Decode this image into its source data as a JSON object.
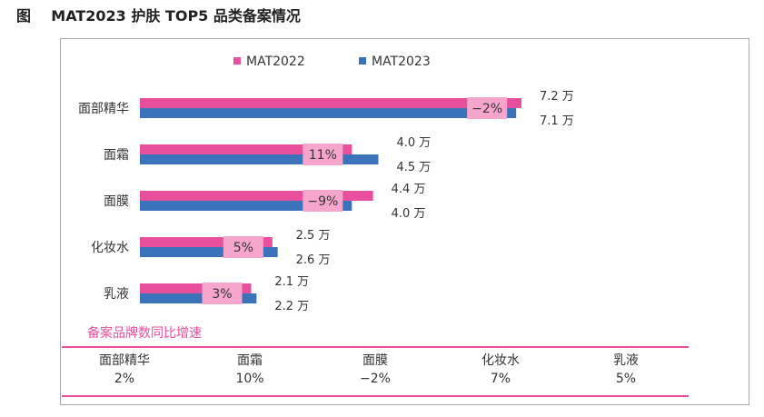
{
  "figure_title": "图    MAT2023 护肤 TOP5 品类备案情况",
  "chart_data": {
    "type": "bar",
    "orientation": "horizontal",
    "categories": [
      "面部精华",
      "面霜",
      "面膜",
      "化妆水",
      "乳液"
    ],
    "series": [
      {
        "name": "MAT2022",
        "values": [
          7.2,
          4.0,
          4.4,
          2.5,
          2.1
        ],
        "labels": [
          "7.2 万",
          "4.0 万",
          "4.4 万",
          "2.5 万",
          "2.1 万"
        ]
      },
      {
        "name": "MAT2023",
        "values": [
          7.1,
          4.5,
          4.0,
          2.6,
          2.2
        ],
        "labels": [
          "7.1 万",
          "4.5 万",
          "4.0 万",
          "2.6 万",
          "2.2 万"
        ]
      }
    ],
    "change_labels": [
      "−2%",
      "11%",
      "−9%",
      "5%",
      "3%"
    ],
    "xlim": [
      0,
      7.2
    ],
    "legend_position": "top",
    "grid": false,
    "colors": {
      "MAT2022": "#e84f9c",
      "MAT2023": "#3a73b9",
      "change_box": "#f6a6cc"
    }
  },
  "table": {
    "title": "备案品牌数同比增速",
    "columns": [
      {
        "name": "面部精华",
        "value": "2%"
      },
      {
        "name": "面霜",
        "value": "10%"
      },
      {
        "name": "面膜",
        "value": "−2%"
      },
      {
        "name": "化妆水",
        "value": "7%"
      },
      {
        "name": "乳液",
        "value": "5%"
      }
    ],
    "accent_color": "#e84f9c"
  }
}
